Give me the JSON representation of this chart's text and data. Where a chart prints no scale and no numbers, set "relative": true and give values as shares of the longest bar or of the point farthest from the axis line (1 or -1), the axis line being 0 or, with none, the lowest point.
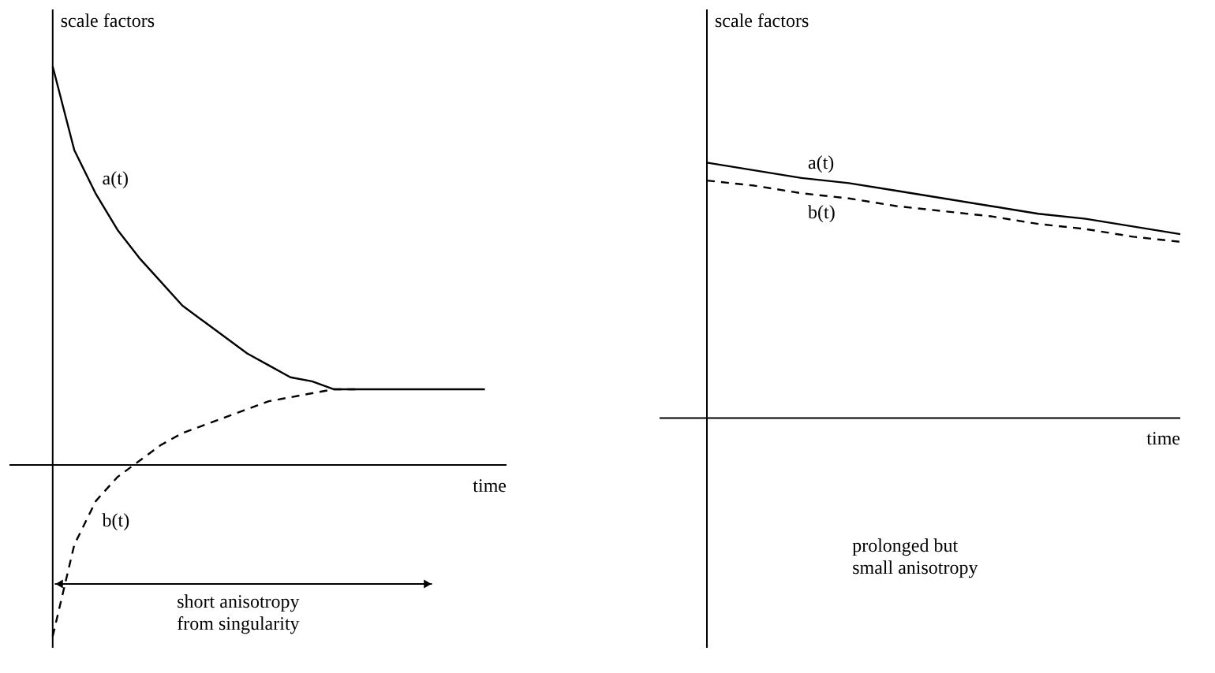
{
  "chart_data": [
    {
      "type": "line",
      "relative": true,
      "ylabel": "scale factors",
      "xlabel": "time",
      "categories": [
        null,
        null,
        null,
        null,
        null,
        null,
        null,
        null,
        null,
        null,
        null,
        null,
        null,
        null,
        null,
        null,
        null,
        null,
        null,
        null,
        null,
        null,
        null,
        null
      ],
      "series": [
        {
          "name": "a(t)",
          "color": "#000000",
          "line_style": "solid",
          "values": [
            null,
            null,
            1,
            0.79,
            0.68,
            0.59,
            0.52,
            0.46,
            0.4,
            0.36,
            0.32,
            0.28,
            0.25,
            0.22,
            0.21,
            0.19,
            0.19,
            0.19,
            0.19,
            0.19,
            0.19,
            0.19,
            0.19,
            null
          ]
        },
        {
          "name": "b(t)",
          "color": "#000000",
          "line_style": "dashed",
          "values": [
            null,
            null,
            -0.43,
            -0.2,
            -0.09,
            -0.03,
            0.01,
            0.05,
            0.08,
            0.1,
            0.12,
            0.14,
            0.16,
            0.17,
            0.18,
            0.19,
            0.19,
            null,
            null,
            null,
            null,
            null,
            null,
            null
          ]
        }
      ],
      "annotations": [
        "short anisotropy\nfrom singularity"
      ]
    },
    {
      "type": "line",
      "relative": true,
      "ylabel": "scale factors",
      "xlabel": "time",
      "categories": [
        null,
        null,
        null,
        null,
        null,
        null,
        null,
        null,
        null,
        null,
        null,
        null
      ],
      "series": [
        {
          "name": "a(t)",
          "color": "#000000",
          "line_style": "solid",
          "values": [
            null,
            1.0,
            0.97,
            0.94,
            0.92,
            0.89,
            0.86,
            0.83,
            0.8,
            0.78,
            0.75,
            0.72
          ]
        },
        {
          "name": "b(t)",
          "color": "#000000",
          "line_style": "dashed",
          "values": [
            null,
            0.93,
            0.91,
            0.88,
            0.86,
            0.83,
            0.81,
            0.79,
            0.76,
            0.74,
            0.71,
            0.69
          ]
        }
      ],
      "annotations": [
        "prolonged but\nsmall anisotropy"
      ]
    }
  ]
}
